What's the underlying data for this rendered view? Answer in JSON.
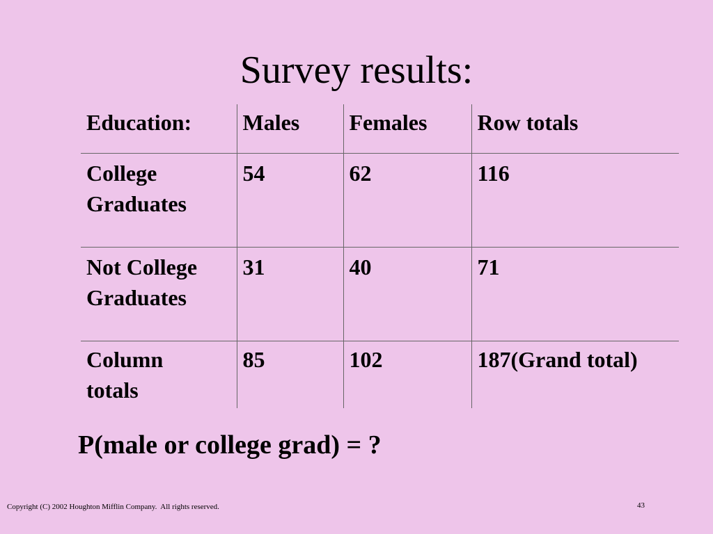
{
  "title": "Survey results:",
  "table": {
    "header": [
      "Education:",
      "Males",
      "Females",
      "Row totals"
    ],
    "rows": [
      [
        "College\nGraduates",
        54,
        62,
        116
      ],
      [
        "Not College\nGraduates",
        31,
        40,
        71
      ],
      [
        "Column\ntotals",
        85,
        102,
        "187(Grand total)"
      ]
    ]
  },
  "question": "P(male or college grad) = ?",
  "footer": {
    "copyright": "Copyright (C) 2002 Houghton Mifflin Company.  All rights reserved.",
    "page_number": 43
  }
}
